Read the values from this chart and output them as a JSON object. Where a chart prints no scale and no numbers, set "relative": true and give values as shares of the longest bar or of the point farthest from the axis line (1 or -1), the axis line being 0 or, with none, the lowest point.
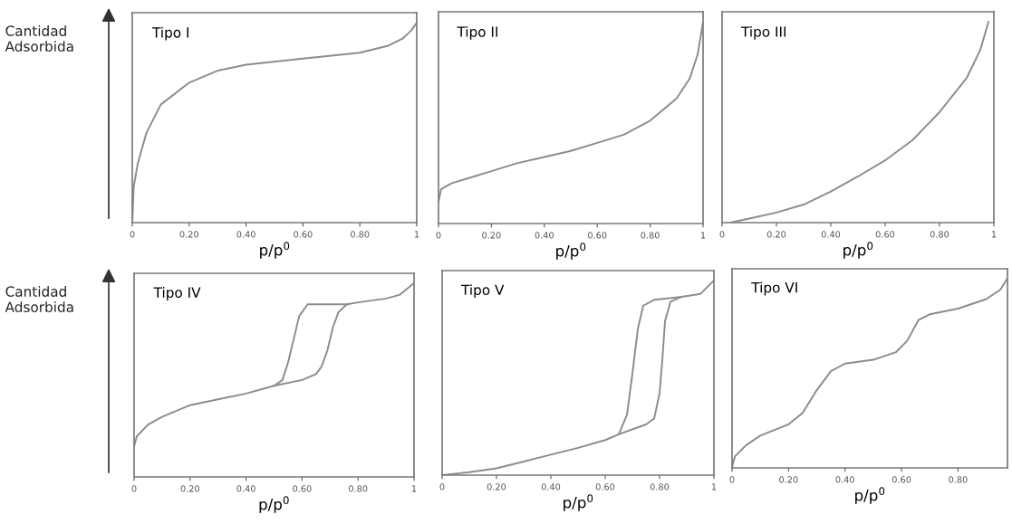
{
  "chart_data": [
    {
      "type": "line",
      "title": "Tipo I",
      "xlabel": "p/p$^{0}$",
      "ylabel": "Cantidad\nAdsorbida",
      "relative": true,
      "xlim": [
        0,
        1
      ],
      "xticks": [
        0,
        {
          "value": 0.2,
          "label": "0.20"
        },
        {
          "value": 0.4,
          "label": "0.40"
        },
        {
          "value": 0.6,
          "label": "0.60"
        },
        {
          "value": 0.8,
          "label": "0.80"
        },
        1
      ],
      "grid": false,
      "tick_labels": "x",
      "series": [
        {
          "color": "#8c8c8c",
          "x": [
            0,
            0.005,
            0.02,
            0.05,
            0.1,
            0.2,
            0.3,
            0.4,
            0.6,
            0.8,
            0.9,
            0.95,
            0.98,
            1.0
          ],
          "values": [
            0,
            0.18,
            0.3,
            0.45,
            0.59,
            0.7,
            0.76,
            0.79,
            0.82,
            0.85,
            0.885,
            0.92,
            0.96,
            1
          ]
        }
      ]
    },
    {
      "type": "line",
      "title": "Tipo II",
      "xlabel": "p/p$^{0}$",
      "relative": true,
      "xlim": [
        0,
        1
      ],
      "xticks": [
        0,
        {
          "value": 0.2,
          "label": "0.20"
        },
        {
          "value": 0.4,
          "label": "0.40"
        },
        {
          "value": 0.6,
          "label": "0.60"
        },
        {
          "value": 0.8,
          "label": "0.80"
        },
        1
      ],
      "grid": false,
      "tick_labels": "x",
      "series": [
        {
          "color": "#8c8c8c",
          "x": [
            0,
            0.01,
            0.05,
            0.1,
            0.2,
            0.3,
            0.4,
            0.5,
            0.6,
            0.7,
            0.8,
            0.9,
            0.95,
            0.98,
            1.0
          ],
          "values": [
            0.11,
            0.17,
            0.2,
            0.22,
            0.26,
            0.3,
            0.33,
            0.36,
            0.4,
            0.44,
            0.51,
            0.62,
            0.72,
            0.84,
            1
          ]
        }
      ]
    },
    {
      "type": "line",
      "title": "Tipo III",
      "xlabel": "p/p$^{0}$",
      "relative": true,
      "xlim": [
        0,
        1
      ],
      "xticks": [
        0,
        {
          "value": 0.2,
          "label": "0.20"
        },
        {
          "value": 0.4,
          "label": "0.40"
        },
        {
          "value": 0.6,
          "label": "0.60"
        },
        {
          "value": 0.8,
          "label": "0.80"
        },
        1
      ],
      "grid": false,
      "tick_labels": "x",
      "series": [
        {
          "color": "#8c8c8c",
          "x": [
            0.03,
            0.1,
            0.2,
            0.3,
            0.4,
            0.5,
            0.6,
            0.7,
            0.8,
            0.9,
            0.95,
            0.98
          ],
          "values": [
            0,
            0.02,
            0.05,
            0.09,
            0.155,
            0.23,
            0.31,
            0.41,
            0.55,
            0.72,
            0.86,
            1
          ]
        }
      ]
    },
    {
      "type": "line",
      "title": "Tipo IV",
      "xlabel": "p/p$^{0}$",
      "ylabel": "Cantidad\nAdsorbida",
      "relative": true,
      "xlim": [
        0,
        1
      ],
      "xticks": [
        0,
        {
          "value": 0.2,
          "label": "0.20"
        },
        {
          "value": 0.4,
          "label": "0.40"
        },
        {
          "value": 0.6,
          "label": "0.60"
        },
        {
          "value": 0.8,
          "label": "0.80"
        },
        1
      ],
      "grid": false,
      "tick_labels": "x",
      "series": [
        {
          "color": "#8c8c8c",
          "x": [
            0,
            0.01,
            0.05,
            0.1,
            0.2,
            0.3,
            0.4,
            0.5,
            0.6,
            0.65,
            0.67,
            0.69,
            0.71,
            0.73,
            0.76,
            0.8,
            0.9,
            0.95,
            1.0
          ],
          "values": [
            0.16,
            0.21,
            0.27,
            0.31,
            0.37,
            0.4,
            0.43,
            0.47,
            0.5,
            0.53,
            0.57,
            0.65,
            0.77,
            0.85,
            0.89,
            0.9,
            0.92,
            0.94,
            1
          ]
        },
        {
          "color": "#8c8c8c",
          "x": [
            0.5,
            0.53,
            0.55,
            0.57,
            0.59,
            0.62,
            0.66,
            0.76
          ],
          "values": [
            0.47,
            0.5,
            0.59,
            0.71,
            0.83,
            0.89,
            0.89,
            0.89
          ]
        }
      ]
    },
    {
      "type": "line",
      "title": "Tipo V",
      "xlabel": "p/p$^{0}$",
      "relative": true,
      "xlim": [
        0,
        1
      ],
      "xticks": [
        0,
        {
          "value": 0.2,
          "label": "0.20"
        },
        {
          "value": 0.4,
          "label": "0.40"
        },
        {
          "value": 0.6,
          "label": "0.60"
        },
        {
          "value": 0.8,
          "label": "0.80"
        },
        1
      ],
      "grid": false,
      "tick_labels": "x",
      "series": [
        {
          "color": "#8c8c8c",
          "x": [
            0,
            0.1,
            0.2,
            0.3,
            0.4,
            0.5,
            0.6,
            0.65,
            0.75,
            0.78,
            0.8,
            0.81,
            0.82,
            0.84,
            0.88,
            0.95,
            1.0
          ],
          "values": [
            0,
            0.015,
            0.035,
            0.07,
            0.105,
            0.14,
            0.18,
            0.21,
            0.26,
            0.29,
            0.42,
            0.59,
            0.79,
            0.89,
            0.915,
            0.93,
            1
          ]
        },
        {
          "color": "#8c8c8c",
          "x": [
            0.65,
            0.68,
            0.7,
            0.72,
            0.74,
            0.78,
            0.88
          ],
          "values": [
            0.21,
            0.31,
            0.52,
            0.75,
            0.87,
            0.9,
            0.915
          ]
        }
      ]
    },
    {
      "type": "line",
      "title": "Tipo VI",
      "xlabel": "p/p$^{0}$",
      "relative": true,
      "xlim": [
        0,
        0.975
      ],
      "xticks": [
        0,
        {
          "value": 0.2,
          "label": "0.20"
        },
        {
          "value": 0.4,
          "label": "0.40"
        },
        {
          "value": 0.6,
          "label": "0.60"
        },
        {
          "value": 0.8,
          "label": "0.80"
        }
      ],
      "grid": false,
      "tick_labels": "x",
      "series": [
        {
          "color": "#8c8c8c",
          "x": [
            0,
            0.01,
            0.05,
            0.1,
            0.2,
            0.25,
            0.3,
            0.35,
            0.4,
            0.5,
            0.58,
            0.62,
            0.66,
            0.7,
            0.8,
            0.9,
            0.95,
            0.975
          ],
          "values": [
            0.005,
            0.06,
            0.12,
            0.17,
            0.23,
            0.29,
            0.41,
            0.51,
            0.55,
            0.57,
            0.61,
            0.67,
            0.78,
            0.81,
            0.84,
            0.89,
            0.94,
            1
          ]
        }
      ]
    }
  ]
}
